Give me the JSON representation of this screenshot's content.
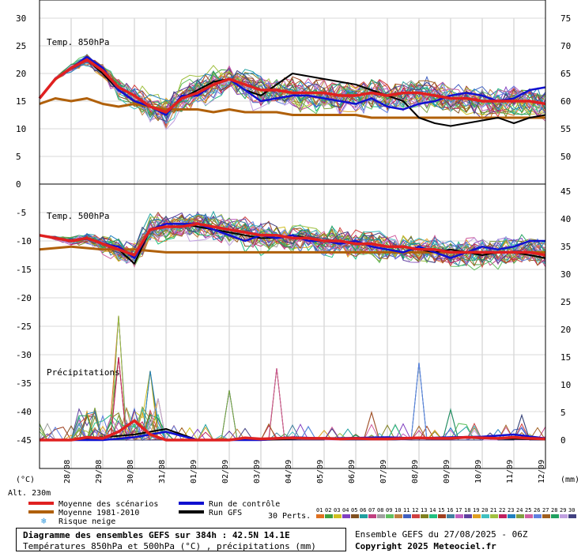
{
  "chart_data": {
    "type": "line",
    "title": "Diagramme des ensembles GEFS sur 384h : 42.5N 14.1E",
    "subtitle": "Températures 850hPa et 500hPa (°C) , précipitations (mm)",
    "run_info": "Ensemble GEFS du 27/08/2025 - 06Z",
    "copyright": "Copyright 2025 Meteociel.fr",
    "altitude_label": "Alt. 230m",
    "left_unit_label": "(°C)",
    "right_unit_label": "(mm)",
    "perts_label": "30 Perts.",
    "panel_labels": {
      "t850": "Temp. 850hPa",
      "t500": "Temp. 500hPa",
      "precip": "Précipitations"
    },
    "x_dates": [
      "28/08",
      "29/08",
      "30/08",
      "31/08",
      "01/09",
      "02/09",
      "03/09",
      "04/09",
      "05/09",
      "06/09",
      "07/09",
      "08/09",
      "09/09",
      "10/09",
      "11/09",
      "12/09"
    ],
    "x_days_range": [
      0,
      16
    ],
    "upper_panel": {
      "ylim": [
        0,
        30
      ],
      "left_ticks": [
        "30",
        "25",
        "20",
        "15",
        "10",
        "5",
        "0"
      ],
      "right_ticks": [
        "75",
        "70",
        "65",
        "60",
        "55",
        "50"
      ]
    },
    "lower_panel": {
      "ylim": [
        -50,
        0
      ],
      "left_ticks": [
        "-5",
        "-10",
        "-15",
        "-20",
        "-25",
        "-30",
        "-35",
        "-40",
        "-45"
      ],
      "right_ticks": [
        "45",
        "40",
        "35",
        "30",
        "25",
        "20",
        "15",
        "10",
        "5",
        "0"
      ]
    },
    "legend": [
      {
        "label": "Moyenne des scénarios",
        "color": "#e02020"
      },
      {
        "label": "Moyenne 1981-2010",
        "color": "#b0600a"
      },
      {
        "label": "Risque neige",
        "color": "#3399dd"
      },
      {
        "label": "Run de contrôle",
        "color": "#1010d0"
      },
      {
        "label": "Run GFS",
        "color": "#000000"
      }
    ],
    "pert_labels": [
      "01",
      "02",
      "03",
      "04",
      "05",
      "06",
      "07",
      "08",
      "09",
      "10",
      "11",
      "12",
      "13",
      "14",
      "15",
      "16",
      "17",
      "18",
      "19",
      "20",
      "21",
      "22",
      "23",
      "24",
      "25",
      "26",
      "27",
      "28",
      "29",
      "30"
    ],
    "pert_colors": [
      "#e07020",
      "#40a040",
      "#d0c020",
      "#8040c0",
      "#805020",
      "#20a0a0",
      "#c04080",
      "#a0a0a0",
      "#60c060",
      "#c08040",
      "#4060c0",
      "#d04040",
      "#808020",
      "#20c080",
      "#a04020",
      "#4080a0",
      "#c060c0",
      "#6040a0",
      "#e0a020",
      "#40c0c0",
      "#a0c040",
      "#c02060",
      "#2080c0",
      "#80a040",
      "#d060a0",
      "#6080e0",
      "#a06020",
      "#20a060",
      "#c0a0e0",
      "#404080"
    ],
    "series_t850": [
      {
        "name": "Moyenne des scénarios",
        "x": [
          0,
          0.5,
          1,
          1.5,
          2,
          2.5,
          3,
          3.5,
          4,
          4.5,
          5,
          5.5,
          6,
          6.5,
          7,
          7.5,
          8,
          8.5,
          9,
          9.5,
          10,
          10.5,
          11,
          11.5,
          12,
          12.5,
          13,
          13.5,
          14,
          14.5,
          15,
          15.5,
          16
        ],
        "y": [
          15.5,
          19,
          21,
          22.5,
          20.5,
          17.5,
          16,
          14,
          13,
          15.5,
          16.5,
          18,
          19,
          18,
          17,
          17,
          16.5,
          16.5,
          16.5,
          16,
          16,
          16.5,
          16,
          16.5,
          16.5,
          16,
          15.5,
          15.5,
          15,
          15,
          15,
          15,
          14.5
        ]
      },
      {
        "name": "Moyenne 1981-2010",
        "x": [
          0,
          0.5,
          1,
          1.5,
          2,
          2.5,
          3,
          3.5,
          4,
          4.5,
          5,
          5.5,
          6,
          6.5,
          7,
          7.5,
          8,
          8.5,
          9,
          9.5,
          10,
          10.5,
          11,
          11.5,
          12,
          12.5,
          13,
          13.5,
          14,
          14.5,
          15,
          15.5,
          16
        ],
        "y": [
          14.5,
          15.5,
          15,
          15.5,
          14.5,
          14,
          14.5,
          14,
          13.5,
          13.5,
          13.5,
          13,
          13.5,
          13,
          13,
          13,
          12.5,
          12.5,
          12.5,
          12.5,
          12.5,
          12,
          12,
          12,
          12,
          12,
          12,
          12,
          12,
          12,
          12,
          12,
          12
        ]
      },
      {
        "name": "Run de contrôle",
        "x": [
          0,
          0.5,
          1,
          1.5,
          2,
          2.5,
          3,
          3.5,
          4,
          4.5,
          5,
          5.5,
          6,
          6.5,
          7,
          7.5,
          8,
          8.5,
          9,
          9.5,
          10,
          10.5,
          11,
          11.5,
          12,
          12.5,
          13,
          13.5,
          14,
          14.5,
          15,
          15.5,
          16
        ],
        "y": [
          15.5,
          19,
          21,
          23,
          21,
          17,
          15,
          14,
          12.5,
          16,
          16,
          18,
          19,
          17,
          15,
          15.5,
          16,
          16,
          15.5,
          15,
          14.5,
          15.5,
          14,
          13.5,
          14.5,
          15,
          16,
          16.5,
          16,
          15,
          15.5,
          17,
          17.5
        ]
      },
      {
        "name": "Run GFS",
        "x": [
          0,
          0.5,
          1,
          1.5,
          2,
          2.5,
          3,
          3.5,
          4,
          4.5,
          5,
          5.5,
          6,
          6.5,
          7,
          7.5,
          8,
          8.5,
          9,
          9.5,
          10,
          10.5,
          11,
          11.5,
          12,
          12.5,
          13,
          13.5,
          14,
          14.5,
          15,
          15.5,
          16
        ],
        "y": [
          15.5,
          19,
          21,
          22.5,
          20,
          17,
          15,
          14,
          13,
          15.5,
          17,
          18.5,
          19,
          17,
          16,
          18,
          20,
          19.5,
          19,
          18.5,
          18,
          17,
          16,
          15,
          12,
          11,
          10.5,
          11,
          11.5,
          12,
          11,
          12,
          12.5
        ]
      }
    ],
    "series_t500": [
      {
        "name": "Moyenne des scénarios",
        "x": [
          0,
          0.5,
          1,
          1.5,
          2,
          2.5,
          3,
          3.5,
          4,
          4.5,
          5,
          5.5,
          6,
          6.5,
          7,
          7.5,
          8,
          8.5,
          9,
          9.5,
          10,
          10.5,
          11,
          11.5,
          12,
          12.5,
          13,
          13.5,
          14,
          14.5,
          15,
          15.5,
          16
        ],
        "y": [
          -9,
          -9.5,
          -10,
          -9.5,
          -10.5,
          -11.5,
          -12.5,
          -8,
          -7.5,
          -7.5,
          -7,
          -7.5,
          -8,
          -8.5,
          -9,
          -9,
          -9.5,
          -9.5,
          -10,
          -10,
          -10.5,
          -10.5,
          -11,
          -11,
          -11.5,
          -11.5,
          -12,
          -12,
          -12,
          -12,
          -12,
          -12,
          -12.5
        ]
      },
      {
        "name": "Moyenne 1981-2010",
        "x": [
          0,
          1,
          2,
          3,
          4,
          5,
          6,
          7,
          8,
          9,
          10,
          11,
          12,
          13,
          14,
          15,
          16
        ],
        "y": [
          -11.5,
          -11,
          -11.5,
          -11.5,
          -12,
          -12,
          -12,
          -12,
          -12,
          -12,
          -12,
          -12,
          -12,
          -12,
          -12,
          -12,
          -12
        ]
      },
      {
        "name": "Run de contrôle",
        "x": [
          0,
          0.5,
          1,
          1.5,
          2,
          2.5,
          3,
          3.5,
          4,
          4.5,
          5,
          5.5,
          6,
          6.5,
          7,
          7.5,
          8,
          8.5,
          9,
          9.5,
          10,
          10.5,
          11,
          11.5,
          12,
          12.5,
          13,
          13.5,
          14,
          14.5,
          15,
          15.5,
          16
        ],
        "y": [
          -9,
          -9.5,
          -10,
          -9.5,
          -10.5,
          -11,
          -13,
          -8,
          -7,
          -7,
          -7,
          -8,
          -9,
          -10,
          -9,
          -9.5,
          -9,
          -10,
          -10,
          -10.5,
          -10,
          -11,
          -11.5,
          -12,
          -11,
          -12,
          -13,
          -12,
          -11,
          -11.5,
          -11,
          -10,
          -10
        ]
      },
      {
        "name": "Run GFS",
        "x": [
          0,
          0.5,
          1,
          1.5,
          2,
          2.5,
          3,
          3.5,
          4,
          4.5,
          5,
          5.5,
          6,
          6.5,
          7,
          7.5,
          8,
          8.5,
          9,
          9.5,
          10,
          10.5,
          11,
          11.5,
          12,
          12.5,
          13,
          13.5,
          14,
          14.5,
          15,
          15.5,
          16
        ],
        "y": [
          -9,
          -9.5,
          -10,
          -9.5,
          -10.5,
          -11.5,
          -14,
          -8,
          -7,
          -7,
          -7.5,
          -8,
          -8.5,
          -9,
          -9.5,
          -9.5,
          -9,
          -9.5,
          -10,
          -10,
          -10.5,
          -10.5,
          -11,
          -11,
          -11.5,
          -12,
          -11.5,
          -12,
          -12.5,
          -12,
          -12,
          -12.5,
          -13
        ]
      }
    ],
    "series_precip": [
      {
        "name": "Moyenne des scénarios",
        "x": [
          0,
          0.5,
          1,
          1.5,
          2,
          2.5,
          3,
          3.5,
          4,
          4.5,
          5,
          5.5,
          6,
          6.5,
          7,
          7.5,
          8,
          8.5,
          9,
          9.5,
          10,
          10.5,
          11,
          11.5,
          12,
          12.5,
          13,
          13.5,
          14,
          14.5,
          15,
          15.5,
          16
        ],
        "y": [
          0,
          0,
          0,
          0.5,
          0.3,
          1.5,
          3.5,
          1,
          0,
          0,
          0,
          0,
          0,
          0.4,
          0.2,
          0.3,
          0.4,
          0.3,
          0.3,
          0.2,
          0.3,
          0.2,
          0.2,
          0.3,
          0.4,
          0.3,
          0.3,
          0.5,
          0.4,
          0.3,
          0.5,
          0.3,
          0.2
        ]
      },
      {
        "name": "Run de contrôle",
        "x": [
          0,
          1,
          2,
          3,
          4,
          5,
          6,
          7,
          8,
          9,
          10,
          11,
          12,
          13,
          14,
          15,
          16
        ],
        "y": [
          0,
          0,
          0,
          0.5,
          1.5,
          0,
          0,
          0,
          0.5,
          0.3,
          0.4,
          0.5,
          0.3,
          0.5,
          0.6,
          1,
          0.3
        ]
      },
      {
        "name": "Run GFS",
        "x": [
          0,
          1,
          2,
          3,
          4,
          5,
          6,
          7,
          8,
          9,
          10,
          11,
          12,
          13,
          14,
          15,
          16
        ],
        "y": [
          0,
          0,
          0.5,
          1,
          2,
          0,
          0,
          0,
          0.2,
          0.4,
          0.3,
          0.3,
          0.4,
          0.5,
          0.3,
          0.2,
          0.1
        ]
      }
    ],
    "precip_peaks_mm": [
      {
        "x": 2.6,
        "y": 22.5
      },
      {
        "x": 2.5,
        "y": 15
      },
      {
        "x": 3.5,
        "y": 12.5
      },
      {
        "x": 6.0,
        "y": 9
      },
      {
        "x": 7.5,
        "y": 13
      },
      {
        "x": 12.0,
        "y": 14
      },
      {
        "x": 10.5,
        "y": 5
      },
      {
        "x": 13.0,
        "y": 5.5
      },
      {
        "x": 3.7,
        "y": 7.5
      },
      {
        "x": 15.2,
        "y": 4.5
      }
    ]
  }
}
